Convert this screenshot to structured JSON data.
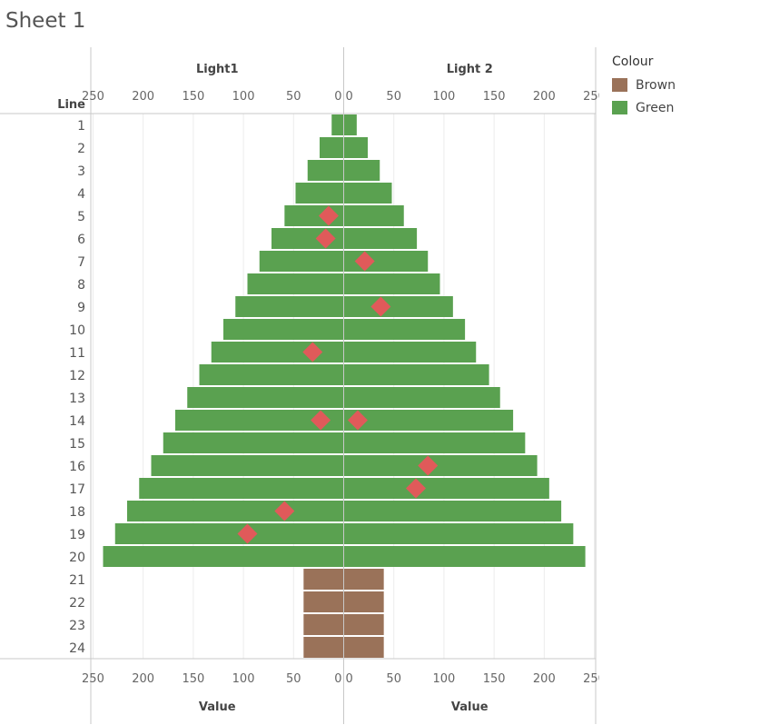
{
  "sheet_title": "Sheet 1",
  "chart_data": {
    "type": "bar",
    "orientation": "horizontal",
    "row_header": "Line",
    "categories": [
      "1",
      "2",
      "3",
      "4",
      "5",
      "6",
      "7",
      "8",
      "9",
      "10",
      "11",
      "12",
      "13",
      "14",
      "15",
      "16",
      "17",
      "18",
      "19",
      "20",
      "21",
      "22",
      "23",
      "24"
    ],
    "panes": [
      {
        "name": "Light1",
        "direction": "left",
        "xlabel": "Value",
        "xlim": [
          0,
          260
        ],
        "ticks": [
          "250",
          "200",
          "150",
          "100",
          "50",
          "0"
        ]
      },
      {
        "name": "Light 2",
        "direction": "right",
        "xlabel": "Value",
        "xlim": [
          0,
          260
        ],
        "ticks": [
          "0",
          "50",
          "100",
          "150",
          "200",
          "250"
        ]
      }
    ],
    "series": [
      {
        "name": "Light1",
        "pane": 0,
        "values": [
          12,
          24,
          36,
          48,
          59,
          72,
          84,
          96,
          108,
          120,
          132,
          144,
          156,
          168,
          180,
          192,
          204,
          216,
          228,
          240,
          40,
          40,
          40,
          40
        ],
        "colours": [
          "Green",
          "Green",
          "Green",
          "Green",
          "Green",
          "Green",
          "Green",
          "Green",
          "Green",
          "Green",
          "Green",
          "Green",
          "Green",
          "Green",
          "Green",
          "Green",
          "Green",
          "Green",
          "Green",
          "Green",
          "Brown",
          "Brown",
          "Brown",
          "Brown"
        ]
      },
      {
        "name": "Light 2",
        "pane": 1,
        "values": [
          13,
          24,
          36,
          48,
          60,
          73,
          84,
          96,
          109,
          121,
          132,
          145,
          156,
          169,
          181,
          193,
          205,
          217,
          229,
          241,
          40,
          40,
          40,
          40
        ],
        "colours": [
          "Green",
          "Green",
          "Green",
          "Green",
          "Green",
          "Green",
          "Green",
          "Green",
          "Green",
          "Green",
          "Green",
          "Green",
          "Green",
          "Green",
          "Green",
          "Green",
          "Green",
          "Green",
          "Green",
          "Green",
          "Brown",
          "Brown",
          "Brown",
          "Brown"
        ]
      }
    ],
    "markers": [
      {
        "pane": 0,
        "line": "5",
        "value": 15
      },
      {
        "pane": 0,
        "line": "6",
        "value": 18
      },
      {
        "pane": 1,
        "line": "7",
        "value": 21
      },
      {
        "pane": 1,
        "line": "9",
        "value": 37
      },
      {
        "pane": 0,
        "line": "11",
        "value": 31
      },
      {
        "pane": 0,
        "line": "14",
        "value": 23
      },
      {
        "pane": 1,
        "line": "14",
        "value": 14
      },
      {
        "pane": 1,
        "line": "16",
        "value": 84
      },
      {
        "pane": 1,
        "line": "17",
        "value": 72
      },
      {
        "pane": 0,
        "line": "18",
        "value": 59
      },
      {
        "pane": 0,
        "line": "19",
        "value": 96
      }
    ],
    "marker_colour": "#e05a5a",
    "grid": true,
    "legend": {
      "title": "Colour",
      "position": "right",
      "items": [
        {
          "label": "Brown",
          "color": "#9a7259"
        },
        {
          "label": "Green",
          "color": "#5aa150"
        }
      ]
    }
  }
}
